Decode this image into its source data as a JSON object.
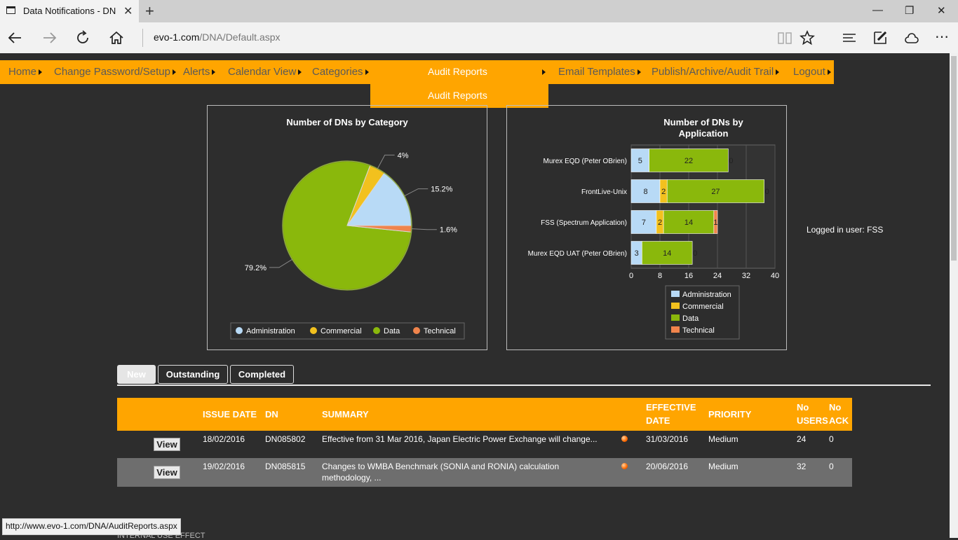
{
  "browser": {
    "tab_title": "Data Notifications - DN",
    "url_host": "evo-1.com",
    "url_path": "/DNA/Default.aspx",
    "status_url": "http://www.evo-1.com/DNA/AuditReports.aspx"
  },
  "menu": {
    "items": [
      "Home",
      "Change Password/Setup",
      "Alerts",
      "Calendar View",
      "Categories",
      "Audit Reports",
      "Email Templates",
      "Publish/Archive/Audit Trail",
      "Logout"
    ],
    "submenu_item": "Audit Reports"
  },
  "charts": {
    "pie_title": "Number of DNs by Category",
    "bar_title_line1": "Number of DNs by",
    "bar_title_line2": "Application"
  },
  "chart_data": [
    {
      "type": "pie",
      "title": "Number of DNs by Category",
      "slices": [
        {
          "label": "Administration",
          "value": 15.2,
          "display": "15.2%",
          "color": "#b8daf6"
        },
        {
          "label": "Commercial",
          "value": 4,
          "display": "4%",
          "color": "#f2c11e"
        },
        {
          "label": "Data",
          "value": 79.2,
          "display": "79.2%",
          "color": "#8ab80c"
        },
        {
          "label": "Technical",
          "value": 1.6,
          "display": "1.6%",
          "color": "#f0844c"
        }
      ],
      "legend": [
        "Administration",
        "Commercial",
        "Data",
        "Technical"
      ],
      "legend_position": "bottom"
    },
    {
      "type": "bar",
      "orientation": "horizontal",
      "stacked": true,
      "title": "Number of DNs by Application",
      "categories": [
        "Murex EQD (Peter OBrien)",
        "FrontLive-Unix",
        "FSS (Spectrum Application)",
        "Murex EQD UAT (Peter OBrien)"
      ],
      "series": [
        {
          "name": "Administration",
          "values": [
            5,
            8,
            7,
            3
          ],
          "color": "#b8daf6"
        },
        {
          "name": "Commercial",
          "values": [
            0,
            2,
            2,
            0
          ],
          "color": "#f2c11e"
        },
        {
          "name": "Data",
          "values": [
            22,
            27,
            14,
            14
          ],
          "color": "#8ab80c"
        },
        {
          "name": "Technical",
          "values": [
            0,
            0,
            1,
            0
          ],
          "color": "#f0844c"
        }
      ],
      "xticks": [
        0,
        8,
        16,
        24,
        32,
        40
      ],
      "xlim": [
        0,
        40
      ],
      "grid": true,
      "legend_position": "bottom"
    }
  ],
  "logged_in": "Logged in user: FSS",
  "tabs": [
    "New",
    "Outstanding",
    "Completed"
  ],
  "grid": {
    "headers": {
      "issue_date": "ISSUE DATE",
      "dn": "DN",
      "summary": "SUMMARY",
      "effective_1": "EFFECTIVE",
      "effective_2": "DATE",
      "priority": "PRIORITY",
      "no_users_1": "No",
      "no_users_2": "USERS",
      "no_ack_1": "No",
      "no_ack_2": "ACK"
    },
    "rows": [
      {
        "action": "View",
        "issue_date": "18/02/2016",
        "dn": "DN085802",
        "summary_1": "Effective from 31 Mar 2016, Japan Electric Power Exchange will change...",
        "summary_2": "",
        "effective": "31/03/2016",
        "priority": "Medium",
        "users": "24",
        "ack": "0"
      },
      {
        "action": "View",
        "issue_date": "19/02/2016",
        "dn": "DN085815",
        "summary_1": "Changes to WMBA Benchmark (SONIA and RONIA) calculation",
        "summary_2": "methodology, ...",
        "effective": "20/06/2016",
        "priority": "Medium",
        "users": "32",
        "ack": "0"
      }
    ]
  },
  "cutoff_text": "INTERNAL USE EFFECT"
}
